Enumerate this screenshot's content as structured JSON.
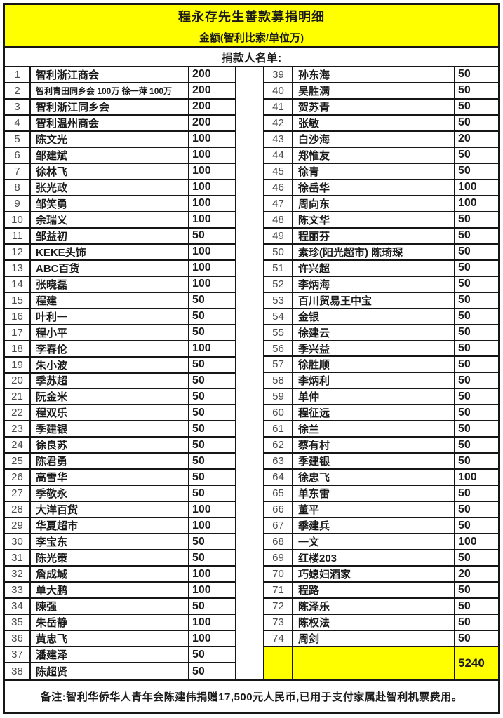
{
  "header": {
    "title": "程永存先生善款募捐明细",
    "subtitle": "金额(智利比索/单位万)",
    "list_label": "捐款人名单:"
  },
  "colors": {
    "highlight": "#ffff00",
    "border": "#161616"
  },
  "donor_list": {
    "left_column": [
      {
        "no": "1",
        "name": "智利浙江商会",
        "amount": "200"
      },
      {
        "no": "2",
        "name": "智利青田同乡会 100万 徐一萍 100万",
        "amount": "200"
      },
      {
        "no": "3",
        "name": "智利浙江同乡会",
        "amount": "200"
      },
      {
        "no": "4",
        "name": "智利温州商会",
        "amount": "200"
      },
      {
        "no": "5",
        "name": "陈文光",
        "amount": "100"
      },
      {
        "no": "6",
        "name": "邹建斌",
        "amount": "100"
      },
      {
        "no": "7",
        "name": "徐林飞",
        "amount": "100"
      },
      {
        "no": "8",
        "name": "张光政",
        "amount": "100"
      },
      {
        "no": "9",
        "name": "邹笑勇",
        "amount": "100"
      },
      {
        "no": "10",
        "name": "余瑞义",
        "amount": "100"
      },
      {
        "no": "11",
        "name": "邹益初",
        "amount": "50"
      },
      {
        "no": "12",
        "name": "KEKE头饰",
        "amount": "100"
      },
      {
        "no": "13",
        "name": "ABC百货",
        "amount": "100"
      },
      {
        "no": "14",
        "name": "张晓磊",
        "amount": "100"
      },
      {
        "no": "15",
        "name": "程建",
        "amount": "50"
      },
      {
        "no": "16",
        "name": "叶利一",
        "amount": "50"
      },
      {
        "no": "17",
        "name": "程小平",
        "amount": "50"
      },
      {
        "no": "18",
        "name": "李春伦",
        "amount": "100"
      },
      {
        "no": "19",
        "name": "朱小波",
        "amount": "50"
      },
      {
        "no": "20",
        "name": "季苏超",
        "amount": "50"
      },
      {
        "no": "21",
        "name": "阮金米",
        "amount": "50"
      },
      {
        "no": "22",
        "name": "程双乐",
        "amount": "50"
      },
      {
        "no": "23",
        "name": "季建银",
        "amount": "50"
      },
      {
        "no": "24",
        "name": "徐良苏",
        "amount": "50"
      },
      {
        "no": "25",
        "name": "陈君勇",
        "amount": "50"
      },
      {
        "no": "26",
        "name": "高雪华",
        "amount": "50"
      },
      {
        "no": "27",
        "name": "季敬永",
        "amount": "50"
      },
      {
        "no": "28",
        "name": "大洋百货",
        "amount": "100"
      },
      {
        "no": "29",
        "name": "华夏超市",
        "amount": "100"
      },
      {
        "no": "30",
        "name": "李宝东",
        "amount": "50"
      },
      {
        "no": "31",
        "name": "陈光策",
        "amount": "50"
      },
      {
        "no": "32",
        "name": "詹成城",
        "amount": "100"
      },
      {
        "no": "33",
        "name": "单大鹏",
        "amount": "100"
      },
      {
        "no": "34",
        "name": "陳强",
        "amount": "50"
      },
      {
        "no": "35",
        "name": "朱岳静",
        "amount": "100"
      },
      {
        "no": "36",
        "name": "黄忠飞",
        "amount": "100"
      },
      {
        "no": "37",
        "name": "潘建泽",
        "amount": "50"
      },
      {
        "no": "38",
        "name": "陈超贤",
        "amount": "50"
      }
    ],
    "right_column": [
      {
        "no": "39",
        "name": "孙东海",
        "amount": "50"
      },
      {
        "no": "40",
        "name": "吴胜满",
        "amount": "50"
      },
      {
        "no": "41",
        "name": "贺苏青",
        "amount": "50"
      },
      {
        "no": "42",
        "name": "张敏",
        "amount": "50"
      },
      {
        "no": "43",
        "name": "白沙海",
        "amount": "20"
      },
      {
        "no": "44",
        "name": "郑惟友",
        "amount": "50"
      },
      {
        "no": "45",
        "name": "徐青",
        "amount": "50"
      },
      {
        "no": "46",
        "name": "徐岳华",
        "amount": "100"
      },
      {
        "no": "47",
        "name": "周向东",
        "amount": "100"
      },
      {
        "no": "48",
        "name": "陈文华",
        "amount": "50"
      },
      {
        "no": "49",
        "name": "程丽芬",
        "amount": "50"
      },
      {
        "no": "50",
        "name": "素珍(阳光超市) 陈琦琛",
        "amount": "50"
      },
      {
        "no": "51",
        "name": "许兴超",
        "amount": "50"
      },
      {
        "no": "52",
        "name": "李炳海",
        "amount": "50"
      },
      {
        "no": "53",
        "name": "百川贸易王中宝",
        "amount": "50"
      },
      {
        "no": "54",
        "name": "金银",
        "amount": "50"
      },
      {
        "no": "55",
        "name": "徐建云",
        "amount": "50"
      },
      {
        "no": "56",
        "name": "季兴益",
        "amount": "50"
      },
      {
        "no": "57",
        "name": "徐胜顺",
        "amount": "50"
      },
      {
        "no": "58",
        "name": "李炳利",
        "amount": "50"
      },
      {
        "no": "59",
        "name": "单仲",
        "amount": "50"
      },
      {
        "no": "60",
        "name": "程征远",
        "amount": "50"
      },
      {
        "no": "61",
        "name": "徐兰",
        "amount": "50"
      },
      {
        "no": "62",
        "name": "蔡有村",
        "amount": "50"
      },
      {
        "no": "63",
        "name": "季建银",
        "amount": "50"
      },
      {
        "no": "64",
        "name": "徐忠飞",
        "amount": "100"
      },
      {
        "no": "65",
        "name": "单东雷",
        "amount": "50"
      },
      {
        "no": "66",
        "name": "董平",
        "amount": "50"
      },
      {
        "no": "67",
        "name": "季建兵",
        "amount": "50"
      },
      {
        "no": "68",
        "name": "一文",
        "amount": "100"
      },
      {
        "no": "69",
        "name": "红楼203",
        "amount": "50"
      },
      {
        "no": "70",
        "name": "巧媳妇酒家",
        "amount": "20"
      },
      {
        "no": "71",
        "name": "程路",
        "amount": "50"
      },
      {
        "no": "72",
        "name": "陈泽乐",
        "amount": "50"
      },
      {
        "no": "73",
        "name": "陈权法",
        "amount": "50"
      },
      {
        "no": "74",
        "name": "周剑",
        "amount": "50"
      }
    ],
    "total": "5240"
  },
  "note": "备注:智利华侨华人青年会陈建伟捐赠17,500元人民币,已用于支付家属赴智利机票费用。"
}
